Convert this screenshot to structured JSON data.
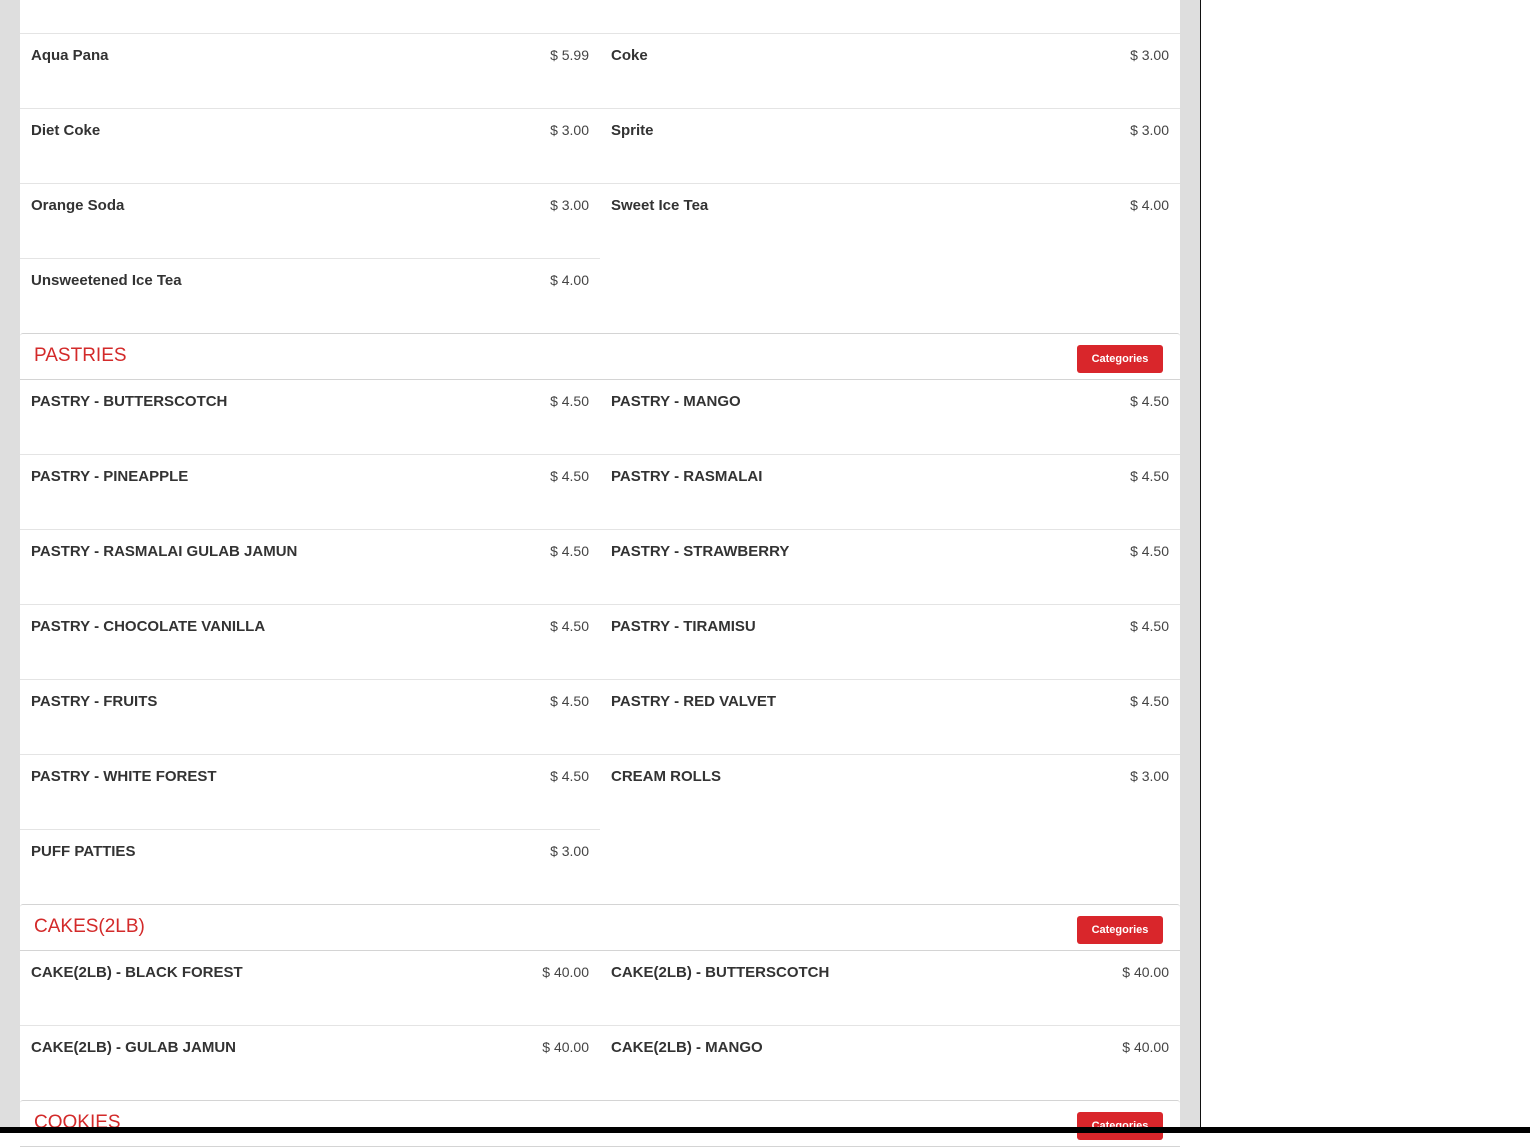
{
  "sections": [
    {
      "title": "",
      "items": [
        {
          "name": "Aqua Pana",
          "price": "$ 5.99"
        },
        {
          "name": "Coke",
          "price": "$ 3.00"
        },
        {
          "name": "Diet Coke",
          "price": "$ 3.00"
        },
        {
          "name": "Sprite",
          "price": "$ 3.00"
        },
        {
          "name": "Orange Soda",
          "price": "$ 3.00"
        },
        {
          "name": "Sweet Ice Tea",
          "price": "$ 4.00"
        },
        {
          "name": "Unsweetened Ice Tea",
          "price": "$ 4.00"
        }
      ]
    },
    {
      "title": "PASTRIES",
      "button": "Categories",
      "items": [
        {
          "name": "PASTRY - BUTTERSCOTCH",
          "price": "$ 4.50"
        },
        {
          "name": "PASTRY - MANGO",
          "price": "$ 4.50"
        },
        {
          "name": "PASTRY - PINEAPPLE",
          "price": "$ 4.50"
        },
        {
          "name": "PASTRY - RASMALAI",
          "price": "$ 4.50"
        },
        {
          "name": "PASTRY - RASMALAI GULAB JAMUN",
          "price": "$ 4.50"
        },
        {
          "name": "PASTRY - STRAWBERRY",
          "price": "$ 4.50"
        },
        {
          "name": "PASTRY - CHOCOLATE VANILLA",
          "price": "$ 4.50"
        },
        {
          "name": "PASTRY - TIRAMISU",
          "price": "$ 4.50"
        },
        {
          "name": "PASTRY - FRUITS",
          "price": "$ 4.50"
        },
        {
          "name": "PASTRY - RED VALVET",
          "price": "$ 4.50"
        },
        {
          "name": "PASTRY - WHITE FOREST",
          "price": "$ 4.50"
        },
        {
          "name": "CREAM ROLLS",
          "price": "$ 3.00"
        },
        {
          "name": "PUFF PATTIES",
          "price": "$ 3.00"
        }
      ]
    },
    {
      "title": "CAKES(2LB)",
      "button": "Categories",
      "items": [
        {
          "name": "CAKE(2LB) - BLACK FOREST",
          "price": "$ 40.00"
        },
        {
          "name": "CAKE(2LB) - BUTTERSCOTCH",
          "price": "$ 40.00"
        },
        {
          "name": "CAKE(2LB) - GULAB JAMUN",
          "price": "$ 40.00"
        },
        {
          "name": "CAKE(2LB) - MANGO",
          "price": "$ 40.00"
        }
      ]
    },
    {
      "title": "COOKIES",
      "button": "Categories",
      "items": []
    }
  ],
  "colors": {
    "accent": "#d9262b",
    "title": "#d32a2a"
  }
}
